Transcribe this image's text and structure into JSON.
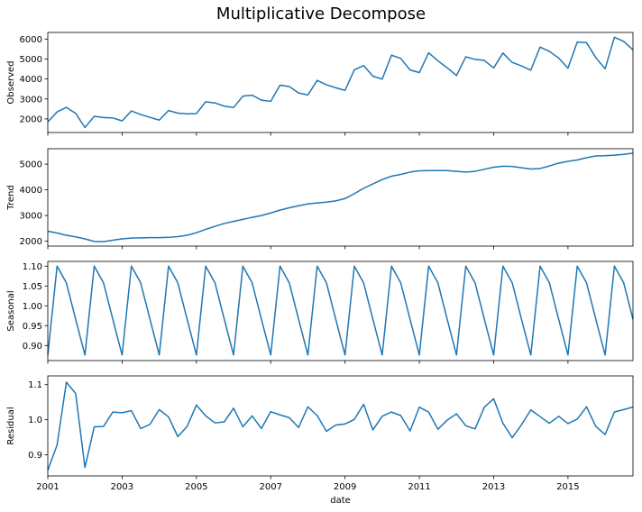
{
  "title": "Multiplicative Decompose",
  "xlabel": "date",
  "chart_data": [
    {
      "type": "line",
      "ylabel": "Observed",
      "x_start": 2001.0,
      "x_step": 0.25,
      "xlim": [
        2001,
        2016.75
      ],
      "ylim": [
        1320,
        6330
      ],
      "yticks": [
        2000,
        3000,
        4000,
        5000,
        6000
      ],
      "ytick_labels": [
        "2000",
        "3000",
        "4000",
        "5000",
        "6000"
      ],
      "values": [
        1850,
        2350,
        2580,
        2280,
        1570,
        2130,
        2070,
        2050,
        1900,
        2400,
        2220,
        2080,
        1940,
        2420,
        2290,
        2250,
        2270,
        2860,
        2800,
        2640,
        2570,
        3140,
        3190,
        2940,
        2880,
        3690,
        3620,
        3300,
        3200,
        3930,
        3710,
        3560,
        3430,
        4460,
        4670,
        4140,
        3990,
        5190,
        5030,
        4450,
        4320,
        5310,
        4910,
        4560,
        4170,
        5110,
        4980,
        4930,
        4550,
        5300,
        4830,
        4650,
        4440,
        5600,
        5380,
        5050,
        4540,
        5850,
        5820,
        5070,
        4510,
        6090,
        5880,
        5460
      ]
    },
    {
      "type": "line",
      "ylabel": "Trend",
      "x_start": 2001.0,
      "x_step": 0.25,
      "xlim": [
        2001,
        2016.75
      ],
      "ylim": [
        1810,
        5600
      ],
      "yticks": [
        2000,
        3000,
        4000,
        5000
      ],
      "ytick_labels": [
        "2000",
        "3000",
        "4000",
        "5000"
      ],
      "values": [
        2390,
        2320,
        2230,
        2170,
        2090,
        1990,
        1980,
        2040,
        2090,
        2120,
        2130,
        2140,
        2140,
        2150,
        2180,
        2230,
        2330,
        2460,
        2580,
        2690,
        2770,
        2850,
        2930,
        3000,
        3100,
        3210,
        3300,
        3380,
        3450,
        3490,
        3520,
        3570,
        3660,
        3850,
        4060,
        4230,
        4400,
        4530,
        4600,
        4690,
        4740,
        4750,
        4750,
        4750,
        4720,
        4690,
        4720,
        4800,
        4880,
        4920,
        4910,
        4860,
        4810,
        4830,
        4930,
        5040,
        5110,
        5160,
        5250,
        5320,
        5330,
        5350,
        5380,
        5430
      ]
    },
    {
      "type": "line",
      "ylabel": "Seasonal",
      "x_start": 2001.0,
      "x_step": 0.25,
      "xlim": [
        2001,
        2016.75
      ],
      "ylim": [
        0.862,
        1.112
      ],
      "yticks": [
        0.9,
        0.95,
        1.0,
        1.05,
        1.1
      ],
      "ytick_labels": [
        "0.90",
        "0.95",
        "1.00",
        "1.05",
        "1.10"
      ],
      "values": [
        0.876,
        1.1,
        1.058,
        0.966,
        0.876,
        1.1,
        1.058,
        0.966,
        0.876,
        1.1,
        1.058,
        0.966,
        0.876,
        1.1,
        1.058,
        0.966,
        0.876,
        1.1,
        1.058,
        0.966,
        0.876,
        1.1,
        1.058,
        0.966,
        0.876,
        1.1,
        1.058,
        0.966,
        0.876,
        1.1,
        1.058,
        0.966,
        0.876,
        1.1,
        1.058,
        0.966,
        0.876,
        1.1,
        1.058,
        0.966,
        0.876,
        1.1,
        1.058,
        0.966,
        0.876,
        1.1,
        1.058,
        0.966,
        0.876,
        1.1,
        1.058,
        0.966,
        0.876,
        1.1,
        1.058,
        0.966,
        0.876,
        1.1,
        1.058,
        0.966,
        0.876,
        1.1,
        1.058,
        0.966
      ]
    },
    {
      "type": "line",
      "ylabel": "Residual",
      "x_start": 2001.0,
      "x_step": 0.25,
      "xlim": [
        2001,
        2016.75
      ],
      "ylim": [
        0.84,
        1.125
      ],
      "yticks": [
        0.9,
        1.0,
        1.1
      ],
      "ytick_labels": [
        "0.9",
        "1.0",
        "1.1"
      ],
      "values": [
        0.856,
        0.928,
        1.107,
        1.075,
        0.864,
        0.98,
        0.981,
        1.022,
        1.02,
        1.026,
        0.975,
        0.987,
        1.029,
        1.008,
        0.952,
        0.981,
        1.042,
        1.011,
        0.991,
        0.994,
        1.033,
        0.98,
        1.011,
        0.975,
        1.023,
        1.014,
        1.006,
        0.978,
        1.037,
        1.012,
        0.967,
        0.985,
        0.988,
        1.001,
        1.044,
        0.971,
        1.01,
        1.022,
        1.012,
        0.968,
        1.036,
        1.022,
        0.973,
        0.999,
        1.017,
        0.983,
        0.974,
        1.036,
        1.06,
        0.99,
        0.949,
        0.986,
        1.028,
        1.009,
        0.99,
        1.01,
        0.989,
        1.002,
        1.037,
        0.981,
        0.958,
        1.022,
        1.029,
        1.036
      ]
    }
  ],
  "xaxis": {
    "ticks": [
      2001,
      2003,
      2005,
      2007,
      2009,
      2011,
      2013,
      2015
    ],
    "tick_labels": [
      "2001",
      "2003",
      "2005",
      "2007",
      "2009",
      "2011",
      "2013",
      "2015"
    ]
  },
  "colors": {
    "line": "#1f77b4"
  }
}
